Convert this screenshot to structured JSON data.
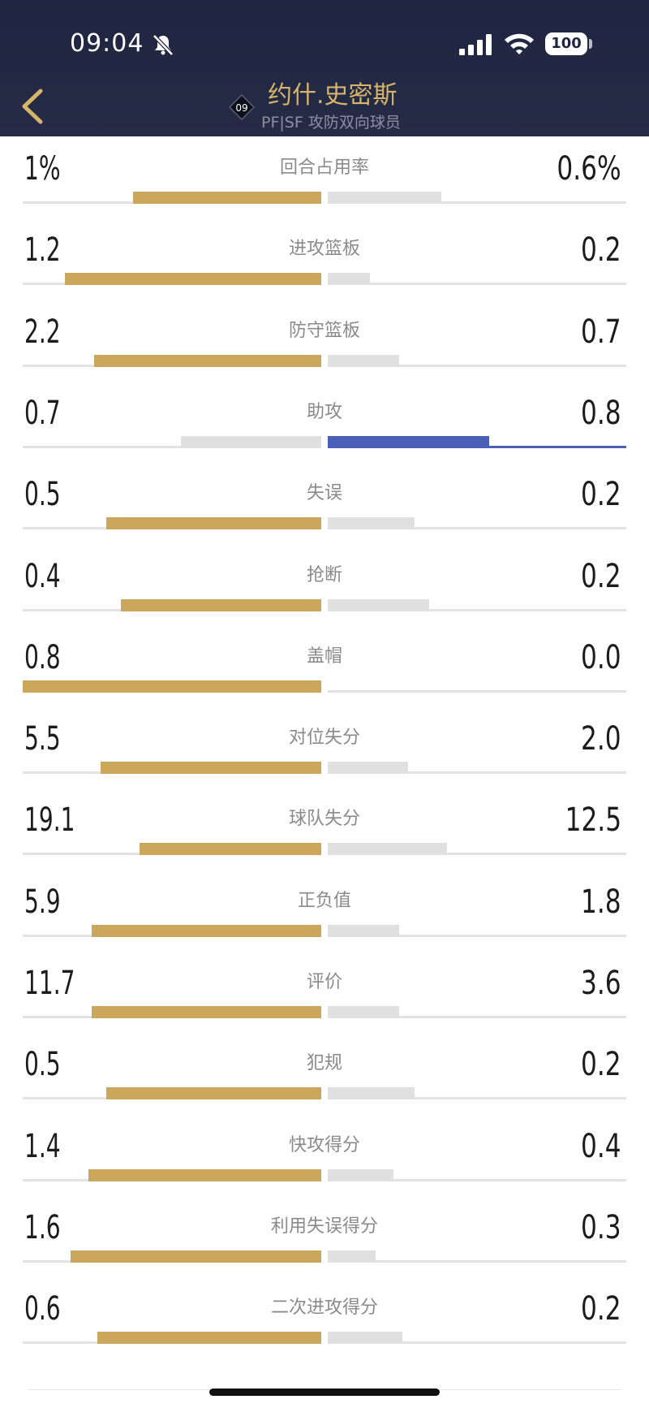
{
  "status_bar": {
    "time": "09:04",
    "battery": "100",
    "icons": [
      "bell-slash-icon",
      "signal-icon",
      "wifi-icon",
      "battery-icon"
    ]
  },
  "header": {
    "jersey_number": "09",
    "player_name": "约什.史密斯",
    "subtitle": "PF|SF 攻防双向球员",
    "back_icon": "chevron-left-icon"
  },
  "colors": {
    "gold": "#caa75c",
    "gray": "#e0e0e0",
    "blue": "#4a5fb8",
    "header_bg": "#1f2540"
  },
  "stats": [
    {
      "label": "回合占用率",
      "left": "1%",
      "right": "0.6%",
      "left_fill": 0.63,
      "right_fill": 0.38,
      "winner": "left"
    },
    {
      "label": "进攻篮板",
      "left": "1.2",
      "right": "0.2",
      "left_fill": 0.86,
      "right_fill": 0.14,
      "winner": "left"
    },
    {
      "label": "防守篮板",
      "left": "2.2",
      "right": "0.7",
      "left_fill": 0.76,
      "right_fill": 0.24,
      "winner": "left"
    },
    {
      "label": "助攻",
      "left": "0.7",
      "right": "0.8",
      "left_fill": 0.47,
      "right_fill": 0.54,
      "winner": "right"
    },
    {
      "label": "失误",
      "left": "0.5",
      "right": "0.2",
      "left_fill": 0.72,
      "right_fill": 0.29,
      "winner": "left"
    },
    {
      "label": "抢断",
      "left": "0.4",
      "right": "0.2",
      "left_fill": 0.67,
      "right_fill": 0.34,
      "winner": "left"
    },
    {
      "label": "盖帽",
      "left": "0.8",
      "right": "0.0",
      "left_fill": 1.0,
      "right_fill": 0.0,
      "winner": "left"
    },
    {
      "label": "对位失分",
      "left": "5.5",
      "right": "2.0",
      "left_fill": 0.74,
      "right_fill": 0.27,
      "winner": "left"
    },
    {
      "label": "球队失分",
      "left": "19.1",
      "right": "12.5",
      "left_fill": 0.61,
      "right_fill": 0.4,
      "winner": "left"
    },
    {
      "label": "正负值",
      "left": "5.9",
      "right": "1.8",
      "left_fill": 0.77,
      "right_fill": 0.24,
      "winner": "left"
    },
    {
      "label": "评价",
      "left": "11.7",
      "right": "3.6",
      "left_fill": 0.77,
      "right_fill": 0.24,
      "winner": "left"
    },
    {
      "label": "犯规",
      "left": "0.5",
      "right": "0.2",
      "left_fill": 0.72,
      "right_fill": 0.29,
      "winner": "left"
    },
    {
      "label": "快攻得分",
      "left": "1.4",
      "right": "0.4",
      "left_fill": 0.78,
      "right_fill": 0.22,
      "winner": "left"
    },
    {
      "label": "利用失误得分",
      "left": "1.6",
      "right": "0.3",
      "left_fill": 0.84,
      "right_fill": 0.16,
      "winner": "left"
    },
    {
      "label": "二次进攻得分",
      "left": "0.6",
      "right": "0.2",
      "left_fill": 0.75,
      "right_fill": 0.25,
      "winner": "left"
    }
  ]
}
